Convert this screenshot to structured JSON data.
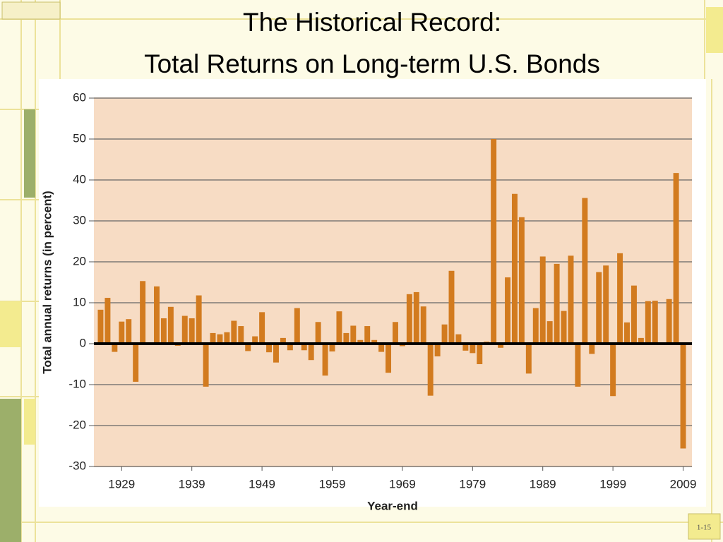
{
  "chart_data": {
    "type": "bar",
    "title": [
      "The Historical Record:",
      "Total Returns on Long-term U.S. Bonds"
    ],
    "xlabel": "Year-end",
    "ylabel": "Total annual returns (in percent)",
    "categories": [
      null,
      null,
      null,
      "1929",
      null,
      null,
      null,
      null,
      null,
      null,
      null,
      null,
      null,
      "1939",
      null,
      null,
      null,
      null,
      null,
      null,
      null,
      null,
      null,
      "1949",
      null,
      null,
      null,
      null,
      null,
      null,
      null,
      null,
      null,
      "1959",
      null,
      null,
      null,
      null,
      null,
      null,
      null,
      null,
      null,
      "1969",
      null,
      null,
      null,
      null,
      null,
      null,
      null,
      null,
      null,
      "1979",
      null,
      null,
      null,
      null,
      null,
      null,
      null,
      null,
      null,
      "1989",
      null,
      null,
      null,
      null,
      null,
      null,
      null,
      null,
      null,
      "1999",
      null,
      null,
      null,
      null,
      null,
      null,
      null,
      null,
      null,
      "2009"
    ],
    "values": [
      8.3,
      11.2,
      -2,
      5.4,
      6,
      -9.3,
      15.3,
      0.2,
      14,
      6.2,
      9,
      -0.5,
      6.8,
      6.2,
      11.8,
      -10.5,
      2.6,
      2.3,
      2.8,
      5.6,
      4.3,
      -1.8,
      1.8,
      7.7,
      -2.1,
      -4.6,
      1.4,
      -1.6,
      8.7,
      -1.6,
      -4,
      5.3,
      -7.8,
      -1.9,
      7.9,
      2.6,
      4.4,
      0.9,
      4.3,
      0.9,
      -2,
      -7.1,
      5.3,
      -0.6,
      12.1,
      12.6,
      9.1,
      -12.7,
      -3.1,
      4.7,
      17.8,
      2.3,
      -1.7,
      -2.3,
      -5,
      0.5,
      50,
      -1,
      16.2,
      36.6,
      30.9,
      -7.3,
      8.7,
      21.3,
      5.5,
      19.5,
      8,
      21.5,
      -10.5,
      35.6,
      -2.5,
      17.5,
      19.1,
      -12.8,
      22.1,
      5.2,
      14.2,
      1.4,
      10.4,
      10.5,
      0,
      10.9,
      41.7,
      -25.6
    ],
    "color": "#d27b1f",
    "ylim": [
      -30,
      60
    ],
    "yticks": [
      -30,
      -20,
      -10,
      0,
      10,
      20,
      30,
      40,
      50,
      60
    ],
    "grid": true
  },
  "page_number": "1-15"
}
